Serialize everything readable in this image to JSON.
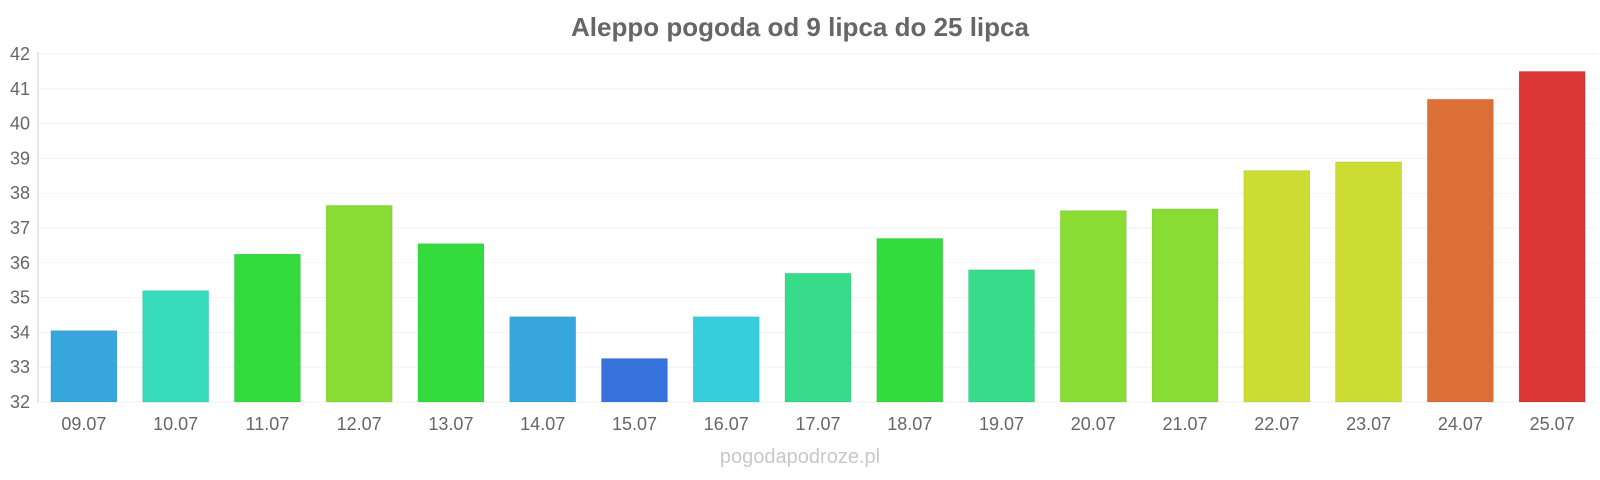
{
  "chart_data": {
    "type": "bar",
    "title": "Aleppo pogoda od 9 lipca do 25 lipca",
    "xlabel": "",
    "ylabel": "",
    "ylim": [
      32,
      42
    ],
    "yticks": [
      32,
      33,
      34,
      35,
      36,
      37,
      38,
      39,
      40,
      41,
      42
    ],
    "grid": true,
    "categories": [
      "09.07",
      "10.07",
      "11.07",
      "12.07",
      "13.07",
      "14.07",
      "15.07",
      "16.07",
      "17.07",
      "18.07",
      "19.07",
      "20.07",
      "21.07",
      "22.07",
      "23.07",
      "24.07",
      "25.07"
    ],
    "values": [
      34.05,
      35.2,
      36.25,
      37.65,
      36.55,
      34.45,
      33.25,
      34.45,
      35.7,
      36.7,
      35.8,
      37.5,
      37.55,
      38.65,
      38.9,
      40.7,
      41.5
    ],
    "colors": [
      "#36a6dc",
      "#36dcbc",
      "#33dc3c",
      "#89dc33",
      "#33dc3c",
      "#36a6dc",
      "#3673dc",
      "#36cedc",
      "#36dc8a",
      "#33dc3c",
      "#36dc8a",
      "#89dc33",
      "#89dc33",
      "#ccdc33",
      "#ccdc33",
      "#dc6f36",
      "#dc3636"
    ]
  },
  "watermark": "pogodapodroze.pl"
}
